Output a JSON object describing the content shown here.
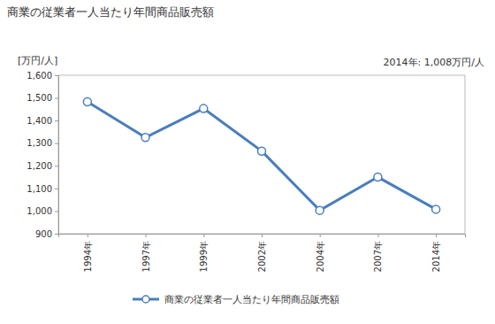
{
  "chart_data": {
    "type": "line",
    "title": "商業の従業者一人当たり年間商品販売額",
    "y_label": "[万円/人]",
    "annotations": [
      "2014年: 1,008万円/人"
    ],
    "categories": [
      "1994年",
      "1997年",
      "1999年",
      "2002年",
      "2004年",
      "2007年",
      "2014年"
    ],
    "series": [
      {
        "name": "商業の従業者一人当たり年間商品販売額",
        "color": "#4a7ebb",
        "marker": "circle",
        "values": [
          1483,
          1325,
          1453,
          1265,
          1003,
          1150,
          1008
        ]
      }
    ],
    "ylim": [
      900,
      1600
    ],
    "yticks": [
      900,
      {
        "value": 1000,
        "label": "1,000"
      },
      {
        "value": 1100,
        "label": "1,100"
      },
      {
        "value": 1200,
        "label": "1,200"
      },
      {
        "value": 1300,
        "label": "1,300"
      },
      {
        "value": 1400,
        "label": "1,400"
      },
      {
        "value": 1500,
        "label": "1,500"
      },
      {
        "value": 1600,
        "label": "1,600"
      }
    ],
    "grid": false,
    "legend": "bottom"
  }
}
